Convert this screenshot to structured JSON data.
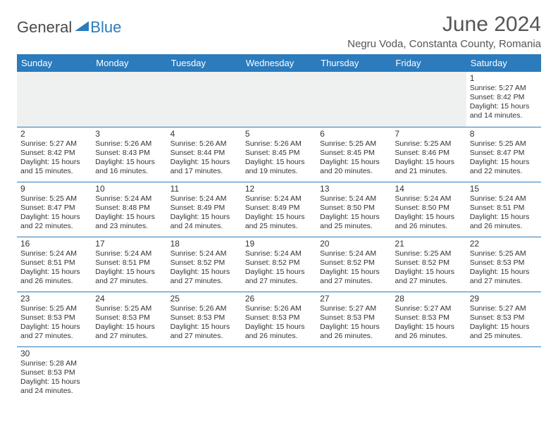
{
  "logo": {
    "part1": "General",
    "part2": "Blue"
  },
  "title": "June 2024",
  "location": "Negru Voda, Constanta County, Romania",
  "dayHeaders": [
    "Sunday",
    "Monday",
    "Tuesday",
    "Wednesday",
    "Thursday",
    "Friday",
    "Saturday"
  ],
  "colors": {
    "headerBg": "#2b7bbd",
    "headerText": "#ffffff",
    "cellBorder": "#2b7bbd",
    "textColor": "#333333",
    "emptyRowBg": "#eef1f0"
  },
  "typography": {
    "titleFontSize": 30,
    "locationFontSize": 15,
    "dayHeaderFontSize": 13,
    "dayNumFontSize": 12,
    "cellFontSize": 10.5
  },
  "weeks": [
    [
      null,
      null,
      null,
      null,
      null,
      null,
      {
        "n": "1",
        "sr": "Sunrise: 5:27 AM",
        "ss": "Sunset: 8:42 PM",
        "d1": "Daylight: 15 hours",
        "d2": "and 14 minutes."
      }
    ],
    [
      {
        "n": "2",
        "sr": "Sunrise: 5:27 AM",
        "ss": "Sunset: 8:42 PM",
        "d1": "Daylight: 15 hours",
        "d2": "and 15 minutes."
      },
      {
        "n": "3",
        "sr": "Sunrise: 5:26 AM",
        "ss": "Sunset: 8:43 PM",
        "d1": "Daylight: 15 hours",
        "d2": "and 16 minutes."
      },
      {
        "n": "4",
        "sr": "Sunrise: 5:26 AM",
        "ss": "Sunset: 8:44 PM",
        "d1": "Daylight: 15 hours",
        "d2": "and 17 minutes."
      },
      {
        "n": "5",
        "sr": "Sunrise: 5:26 AM",
        "ss": "Sunset: 8:45 PM",
        "d1": "Daylight: 15 hours",
        "d2": "and 19 minutes."
      },
      {
        "n": "6",
        "sr": "Sunrise: 5:25 AM",
        "ss": "Sunset: 8:45 PM",
        "d1": "Daylight: 15 hours",
        "d2": "and 20 minutes."
      },
      {
        "n": "7",
        "sr": "Sunrise: 5:25 AM",
        "ss": "Sunset: 8:46 PM",
        "d1": "Daylight: 15 hours",
        "d2": "and 21 minutes."
      },
      {
        "n": "8",
        "sr": "Sunrise: 5:25 AM",
        "ss": "Sunset: 8:47 PM",
        "d1": "Daylight: 15 hours",
        "d2": "and 22 minutes."
      }
    ],
    [
      {
        "n": "9",
        "sr": "Sunrise: 5:25 AM",
        "ss": "Sunset: 8:47 PM",
        "d1": "Daylight: 15 hours",
        "d2": "and 22 minutes."
      },
      {
        "n": "10",
        "sr": "Sunrise: 5:24 AM",
        "ss": "Sunset: 8:48 PM",
        "d1": "Daylight: 15 hours",
        "d2": "and 23 minutes."
      },
      {
        "n": "11",
        "sr": "Sunrise: 5:24 AM",
        "ss": "Sunset: 8:49 PM",
        "d1": "Daylight: 15 hours",
        "d2": "and 24 minutes."
      },
      {
        "n": "12",
        "sr": "Sunrise: 5:24 AM",
        "ss": "Sunset: 8:49 PM",
        "d1": "Daylight: 15 hours",
        "d2": "and 25 minutes."
      },
      {
        "n": "13",
        "sr": "Sunrise: 5:24 AM",
        "ss": "Sunset: 8:50 PM",
        "d1": "Daylight: 15 hours",
        "d2": "and 25 minutes."
      },
      {
        "n": "14",
        "sr": "Sunrise: 5:24 AM",
        "ss": "Sunset: 8:50 PM",
        "d1": "Daylight: 15 hours",
        "d2": "and 26 minutes."
      },
      {
        "n": "15",
        "sr": "Sunrise: 5:24 AM",
        "ss": "Sunset: 8:51 PM",
        "d1": "Daylight: 15 hours",
        "d2": "and 26 minutes."
      }
    ],
    [
      {
        "n": "16",
        "sr": "Sunrise: 5:24 AM",
        "ss": "Sunset: 8:51 PM",
        "d1": "Daylight: 15 hours",
        "d2": "and 26 minutes."
      },
      {
        "n": "17",
        "sr": "Sunrise: 5:24 AM",
        "ss": "Sunset: 8:51 PM",
        "d1": "Daylight: 15 hours",
        "d2": "and 27 minutes."
      },
      {
        "n": "18",
        "sr": "Sunrise: 5:24 AM",
        "ss": "Sunset: 8:52 PM",
        "d1": "Daylight: 15 hours",
        "d2": "and 27 minutes."
      },
      {
        "n": "19",
        "sr": "Sunrise: 5:24 AM",
        "ss": "Sunset: 8:52 PM",
        "d1": "Daylight: 15 hours",
        "d2": "and 27 minutes."
      },
      {
        "n": "20",
        "sr": "Sunrise: 5:24 AM",
        "ss": "Sunset: 8:52 PM",
        "d1": "Daylight: 15 hours",
        "d2": "and 27 minutes."
      },
      {
        "n": "21",
        "sr": "Sunrise: 5:25 AM",
        "ss": "Sunset: 8:52 PM",
        "d1": "Daylight: 15 hours",
        "d2": "and 27 minutes."
      },
      {
        "n": "22",
        "sr": "Sunrise: 5:25 AM",
        "ss": "Sunset: 8:53 PM",
        "d1": "Daylight: 15 hours",
        "d2": "and 27 minutes."
      }
    ],
    [
      {
        "n": "23",
        "sr": "Sunrise: 5:25 AM",
        "ss": "Sunset: 8:53 PM",
        "d1": "Daylight: 15 hours",
        "d2": "and 27 minutes."
      },
      {
        "n": "24",
        "sr": "Sunrise: 5:25 AM",
        "ss": "Sunset: 8:53 PM",
        "d1": "Daylight: 15 hours",
        "d2": "and 27 minutes."
      },
      {
        "n": "25",
        "sr": "Sunrise: 5:26 AM",
        "ss": "Sunset: 8:53 PM",
        "d1": "Daylight: 15 hours",
        "d2": "and 27 minutes."
      },
      {
        "n": "26",
        "sr": "Sunrise: 5:26 AM",
        "ss": "Sunset: 8:53 PM",
        "d1": "Daylight: 15 hours",
        "d2": "and 26 minutes."
      },
      {
        "n": "27",
        "sr": "Sunrise: 5:27 AM",
        "ss": "Sunset: 8:53 PM",
        "d1": "Daylight: 15 hours",
        "d2": "and 26 minutes."
      },
      {
        "n": "28",
        "sr": "Sunrise: 5:27 AM",
        "ss": "Sunset: 8:53 PM",
        "d1": "Daylight: 15 hours",
        "d2": "and 26 minutes."
      },
      {
        "n": "29",
        "sr": "Sunrise: 5:27 AM",
        "ss": "Sunset: 8:53 PM",
        "d1": "Daylight: 15 hours",
        "d2": "and 25 minutes."
      }
    ],
    [
      {
        "n": "30",
        "sr": "Sunrise: 5:28 AM",
        "ss": "Sunset: 8:53 PM",
        "d1": "Daylight: 15 hours",
        "d2": "and 24 minutes."
      },
      null,
      null,
      null,
      null,
      null,
      null
    ]
  ]
}
